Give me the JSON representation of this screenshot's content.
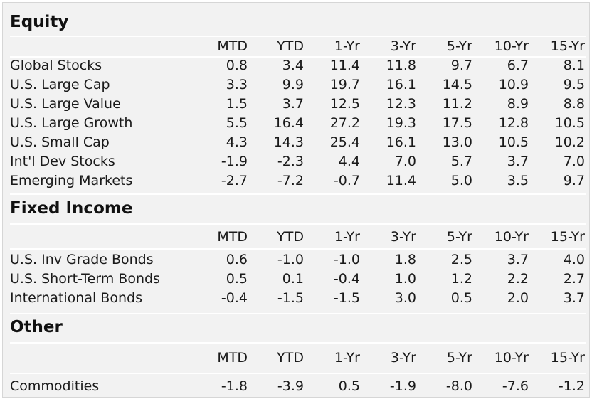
{
  "columns": [
    "MTD",
    "YTD",
    "1-Yr",
    "3-Yr",
    "5-Yr",
    "10-Yr",
    "15-Yr"
  ],
  "sections": [
    {
      "title": "Equity",
      "rows": [
        {
          "label": "Global Stocks",
          "values": [
            "0.8",
            "3.4",
            "11.4",
            "11.8",
            "9.7",
            "6.7",
            "8.1"
          ]
        },
        {
          "label": "U.S. Large Cap",
          "values": [
            "3.3",
            "9.9",
            "19.7",
            "16.1",
            "14.5",
            "10.9",
            "9.5"
          ]
        },
        {
          "label": "U.S. Large Value",
          "values": [
            "1.5",
            "3.7",
            "12.5",
            "12.3",
            "11.2",
            "8.9",
            "8.8"
          ]
        },
        {
          "label": "U.S. Large Growth",
          "values": [
            "5.5",
            "16.4",
            "27.2",
            "19.3",
            "17.5",
            "12.8",
            "10.5"
          ]
        },
        {
          "label": "U.S. Small Cap",
          "values": [
            "4.3",
            "14.3",
            "25.4",
            "16.1",
            "13.0",
            "10.5",
            "10.2"
          ]
        },
        {
          "label": "Int'l Dev Stocks",
          "values": [
            "-1.9",
            "-2.3",
            "4.4",
            "7.0",
            "5.7",
            "3.7",
            "7.0"
          ]
        },
        {
          "label": "Emerging Markets",
          "values": [
            "-2.7",
            "-7.2",
            "-0.7",
            "11.4",
            "5.0",
            "3.5",
            "9.7"
          ]
        }
      ]
    },
    {
      "title": "Fixed Income",
      "rows": [
        {
          "label": "U.S. Inv Grade Bonds",
          "values": [
            "0.6",
            "-1.0",
            "-1.0",
            "1.8",
            "2.5",
            "3.7",
            "4.0"
          ]
        },
        {
          "label": "U.S. Short-Term Bonds",
          "values": [
            "0.5",
            "0.1",
            "-0.4",
            "1.0",
            "1.2",
            "2.2",
            "2.7"
          ]
        },
        {
          "label": "International Bonds",
          "values": [
            "-0.4",
            "-1.5",
            "-1.5",
            "3.0",
            "0.5",
            "2.0",
            "3.7"
          ]
        }
      ]
    },
    {
      "title": "Other",
      "rows": [
        {
          "label": "Commodities",
          "values": [
            "-1.8",
            "-3.9",
            "0.5",
            "-1.9",
            "-8.0",
            "-7.6",
            "-1.2"
          ]
        }
      ]
    }
  ]
}
